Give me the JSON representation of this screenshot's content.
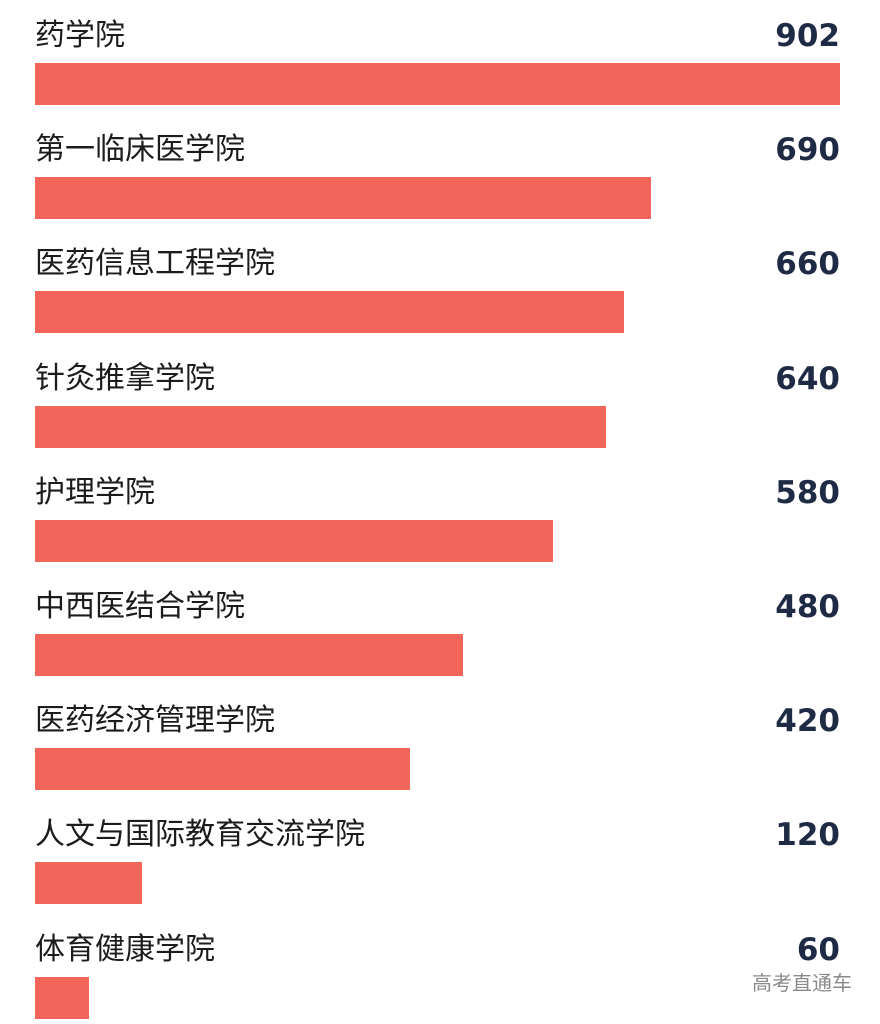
{
  "chart_data": {
    "type": "bar",
    "orientation": "horizontal",
    "categories": [
      "药学院",
      "第一临床医学院",
      "医药信息工程学院",
      "针灸推拿学院",
      "护理学院",
      "中西医结合学院",
      "医药经济管理学院",
      "人文与国际教育交流学院",
      "体育健康学院"
    ],
    "values": [
      902,
      690,
      660,
      640,
      580,
      480,
      420,
      120,
      60
    ],
    "value_labels": [
      "902",
      "690",
      "660",
      "640",
      "580",
      "480",
      "420",
      "120",
      "60"
    ],
    "xlim": [
      0,
      902
    ],
    "grid": false,
    "bar_color": "#f2655a"
  },
  "watermark": "高考直通车"
}
